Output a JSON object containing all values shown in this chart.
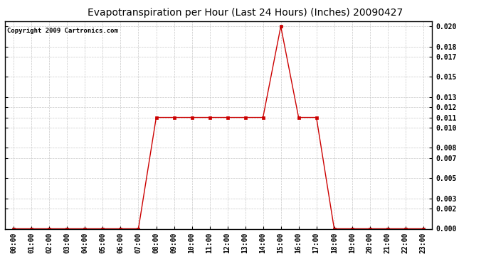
{
  "title": "Evapotranspiration per Hour (Last 24 Hours) (Inches) 20090427",
  "copyright": "Copyright 2009 Cartronics.com",
  "x_labels": [
    "00:00",
    "01:00",
    "02:00",
    "03:00",
    "04:00",
    "05:00",
    "06:00",
    "07:00",
    "08:00",
    "09:00",
    "10:00",
    "11:00",
    "12:00",
    "13:00",
    "14:00",
    "15:00",
    "16:00",
    "17:00",
    "18:00",
    "19:00",
    "20:00",
    "21:00",
    "22:00",
    "23:00"
  ],
  "y_values": [
    0.0,
    0.0,
    0.0,
    0.0,
    0.0,
    0.0,
    0.0,
    0.0,
    0.011,
    0.011,
    0.011,
    0.011,
    0.011,
    0.011,
    0.011,
    0.02,
    0.011,
    0.011,
    0.0,
    0.0,
    0.0,
    0.0,
    0.0,
    0.0
  ],
  "line_color": "#cc0000",
  "marker": "s",
  "marker_size": 2.5,
  "marker_color": "#cc0000",
  "background_color": "#ffffff",
  "plot_bg_color": "#ffffff",
  "grid_color": "#c8c8c8",
  "ylim": [
    0.0,
    0.0205
  ],
  "yticks": [
    0.0,
    0.002,
    0.003,
    0.005,
    0.007,
    0.008,
    0.01,
    0.011,
    0.012,
    0.013,
    0.015,
    0.017,
    0.018,
    0.02
  ],
  "title_fontsize": 10,
  "copyright_fontsize": 6.5,
  "tick_fontsize": 7,
  "figsize": [
    6.9,
    3.75
  ],
  "dpi": 100
}
